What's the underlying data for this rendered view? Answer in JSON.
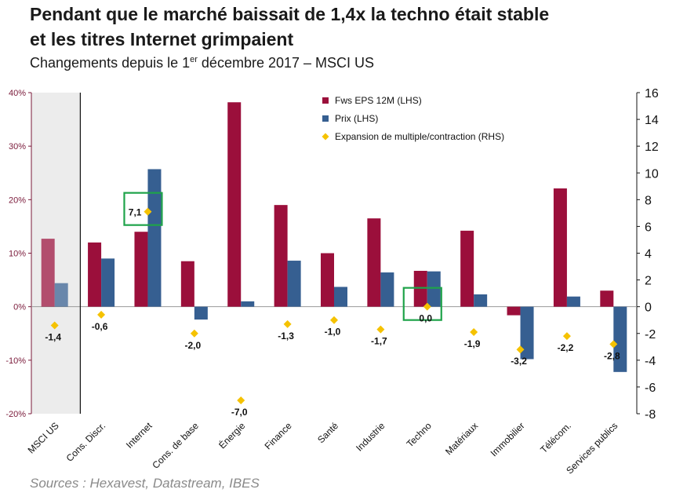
{
  "header": {
    "title_line1": "Pendant que le marché baissait de 1,4x la techno était stable",
    "title_line2": "et les titres Internet grimpaient",
    "subtitle_pre": "Changements depuis le 1",
    "subtitle_sup": "er",
    "subtitle_post": " décembre 2017 – MSCI US"
  },
  "footer": {
    "source": "Sources : Hexavest, Datastream, IBES"
  },
  "chart_data": {
    "type": "bar",
    "categories": [
      "MSCI US",
      "Cons. Discr.",
      "Internet",
      "Cons. de base",
      "Énergie",
      "Finance",
      "Santé",
      "Industrie",
      "Techno",
      "Matériaux",
      "Immobilier",
      "Télécom.",
      "Services publics"
    ],
    "series": [
      {
        "name": "Fws EPS 12M (LHS)",
        "axis": "left",
        "color": "#9b0f3b",
        "values": [
          12.7,
          12.0,
          14.0,
          8.5,
          38.2,
          19.0,
          10.0,
          16.5,
          6.7,
          14.2,
          -1.6,
          22.1,
          3.0
        ]
      },
      {
        "name": "Prix (LHS)",
        "axis": "left",
        "color": "#365f91",
        "values": [
          4.4,
          9.0,
          25.7,
          -2.4,
          1.0,
          8.6,
          3.7,
          6.4,
          6.6,
          2.3,
          -9.8,
          1.9,
          -12.2
        ]
      },
      {
        "name": "Expansion de multiple/contraction  (RHS)",
        "axis": "right",
        "color": "#f5c200",
        "values": [
          -1.4,
          -0.6,
          7.1,
          -2.0,
          -7.0,
          -1.3,
          -1.0,
          -1.7,
          0.0,
          -1.9,
          -3.2,
          -2.2,
          -2.8
        ],
        "labels": [
          "-1,4",
          "-0,6",
          "7,1",
          "-2,0",
          "-7,0",
          "-1,3",
          "-1,0",
          "-1,7",
          "0,0",
          "-1,9",
          "-3,2",
          "-2,2",
          "-2,8"
        ]
      }
    ],
    "y_left": {
      "min": -20,
      "max": 40,
      "step": 10,
      "tick_labels": [
        "-20%",
        "-10%",
        "0%",
        "10%",
        "20%",
        "30%",
        "40%"
      ]
    },
    "y_right": {
      "min": -8,
      "max": 16,
      "step": 2,
      "tick_labels": [
        "-8",
        "-6",
        "-4",
        "-2",
        "0",
        "2",
        "4",
        "6",
        "8",
        "10",
        "12",
        "14",
        "16"
      ]
    },
    "highlighted_categories": [
      "Internet",
      "Techno"
    ],
    "shaded_category": "MSCI US",
    "legend_position": "top-center",
    "grid": false
  }
}
